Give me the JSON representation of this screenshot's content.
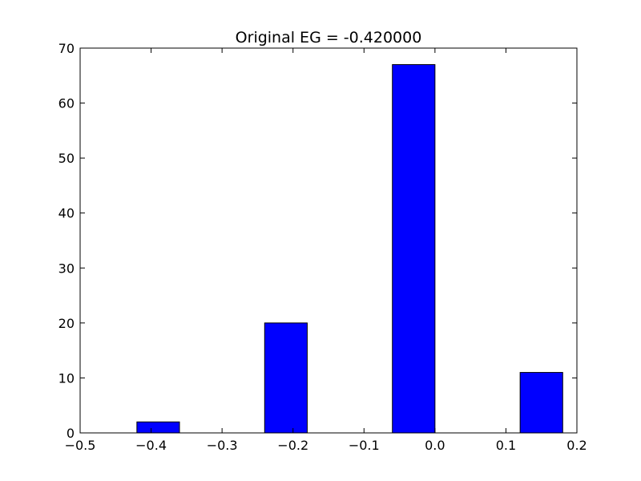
{
  "chart_data": {
    "type": "bar",
    "title": "Original EG = -0.420000",
    "xlabel": "",
    "ylabel": "",
    "xlim": [
      -0.5,
      0.2
    ],
    "ylim": [
      0,
      70
    ],
    "xticks": [
      -0.5,
      -0.4,
      -0.3,
      -0.2,
      -0.1,
      0.0,
      0.1,
      0.2
    ],
    "xtick_labels": [
      "−0.5",
      "−0.4",
      "−0.3",
      "−0.2",
      "−0.1",
      "0.0",
      "0.1",
      "0.2"
    ],
    "yticks": [
      0,
      10,
      20,
      30,
      40,
      50,
      60,
      70
    ],
    "ytick_labels": [
      "0",
      "10",
      "20",
      "30",
      "40",
      "50",
      "60",
      "70"
    ],
    "bars": [
      {
        "x_start": -0.42,
        "x_end": -0.36,
        "value": 2
      },
      {
        "x_start": -0.24,
        "x_end": -0.18,
        "value": 20
      },
      {
        "x_start": -0.06,
        "x_end": 0.0,
        "value": 67
      },
      {
        "x_start": 0.12,
        "x_end": 0.18,
        "value": 11
      }
    ],
    "bar_color": "#0000ff",
    "grid": false,
    "legend": "none"
  }
}
